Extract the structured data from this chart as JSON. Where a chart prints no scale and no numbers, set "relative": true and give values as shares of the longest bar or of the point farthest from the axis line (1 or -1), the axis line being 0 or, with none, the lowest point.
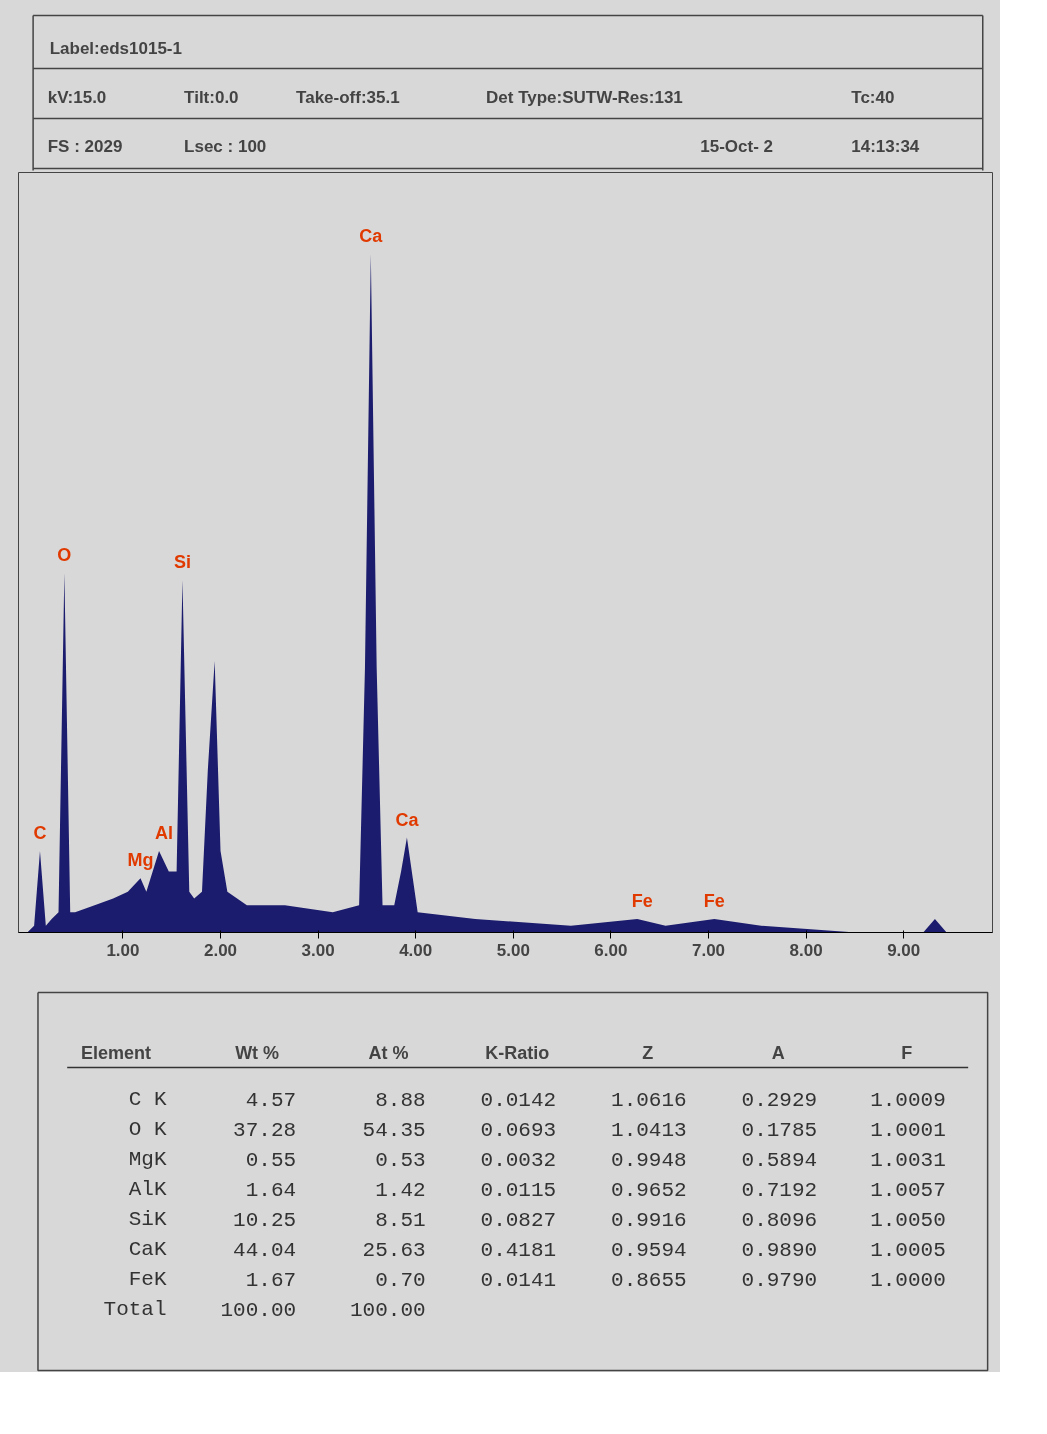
{
  "chart_data": [
    {
      "type": "area",
      "title": "Label:eds1015-1",
      "relative": true,
      "tick_labels": "x",
      "grid": false,
      "annotations": [
        "kV:15.0",
        "Tilt:0.0",
        "Take-off:35.1",
        "Det Type:SUTW-Res:131",
        "Tc:40",
        "FS : 2029",
        "Lsec : 100",
        "15-Oct- 2",
        "14:13:34",
        {
          "text": "C",
          "x": 0.15,
          "y": 0.12
        },
        {
          "text": "O",
          "x": 0.4,
          "y": 0.53
        },
        {
          "text": "Mg",
          "x": 1.18,
          "y": 0.08
        },
        {
          "text": "Al",
          "x": 1.42,
          "y": 0.12
        },
        {
          "text": "Si",
          "x": 1.61,
          "y": 0.52
        },
        {
          "text": "Ca",
          "x": 3.54,
          "y": 1
        },
        {
          "text": "Ca",
          "x": 3.91,
          "y": 0.14
        },
        {
          "text": "Fe",
          "x": 6.32,
          "y": 0.02
        },
        {
          "text": "Fe",
          "x": 7.06,
          "y": 0.02
        }
      ],
      "xlim": [
        -0.07,
        9.91
      ],
      "xticks": [
        {
          "value": 1,
          "label": "1.00"
        },
        {
          "value": 2,
          "label": "2.00"
        },
        {
          "value": 3,
          "label": "3.00"
        },
        {
          "value": 4,
          "label": "4.00"
        },
        {
          "value": 5,
          "label": "5.00"
        },
        {
          "value": 6,
          "label": "6.00"
        },
        {
          "value": 7,
          "label": "7.00"
        },
        {
          "value": 8,
          "label": "8.00"
        },
        {
          "value": 9,
          "label": "9.00"
        }
      ],
      "series": [
        {
          "color": "#1c1c6e",
          "x": [
            0.02,
            0.09,
            0.15,
            0.21,
            0.27,
            0.34,
            0.4,
            0.46,
            0.51,
            0.71,
            0.9,
            1.05,
            1.18,
            1.24,
            1.37,
            1.47,
            1.55,
            1.61,
            1.68,
            1.73,
            1.81,
            1.87,
            1.94,
            2.0,
            2.07,
            2.27,
            2.66,
            3.15,
            3.42,
            3.48,
            3.54,
            3.6,
            3.66,
            3.78,
            3.85,
            3.91,
            3.97,
            4.02,
            4.61,
            5.59,
            6.27,
            6.56,
            7.06,
            7.54,
            8.51,
            9.2,
            9.32,
            9.44,
            9.91
          ],
          "values": [
            0.0,
            0.01,
            0.12,
            0.01,
            0.02,
            0.03,
            0.53,
            0.03,
            0.03,
            0.04,
            0.05,
            0.06,
            0.08,
            0.06,
            0.12,
            0.09,
            0.09,
            0.52,
            0.06,
            0.05,
            0.06,
            0.24,
            0.4,
            0.12,
            0.06,
            0.04,
            0.04,
            0.03,
            0.04,
            0.39,
            1,
            0.39,
            0.04,
            0.04,
            0.09,
            0.14,
            0.08,
            0.03,
            0.02,
            0.01,
            0.02,
            0.01,
            0.02,
            0.01,
            0.0,
            0.0,
            0.02,
            0.0,
            0.0
          ]
        }
      ]
    },
    {
      "type": "other",
      "annotations": [
        "Element",
        "Wt %",
        "At %",
        "K-Ratio",
        "Z",
        "A",
        "F",
        "C K",
        "4.57",
        "8.88",
        "0.0142",
        "1.0616",
        "0.2929",
        "1.0009",
        "O K",
        "37.28",
        "54.35",
        "0.0693",
        "1.0413",
        "0.1785",
        "1.0001",
        "MgK",
        "0.55",
        "0.53",
        "0.0032",
        "0.9948",
        "0.5894",
        "1.0031",
        "AlK",
        "1.64",
        "1.42",
        "0.0115",
        "0.9652",
        "0.7192",
        "1.0057",
        "SiK",
        "10.25",
        "8.51",
        "0.0827",
        "0.9916",
        "0.8096",
        "1.0050",
        "CaK",
        "44.04",
        "25.63",
        "0.4181",
        "0.9594",
        "0.9890",
        "1.0005",
        "FeK",
        "1.67",
        "0.70",
        "0.0141",
        "0.8655",
        "0.9790",
        "1.0000",
        "Total",
        "100.00",
        "100.00"
      ]
    }
  ]
}
